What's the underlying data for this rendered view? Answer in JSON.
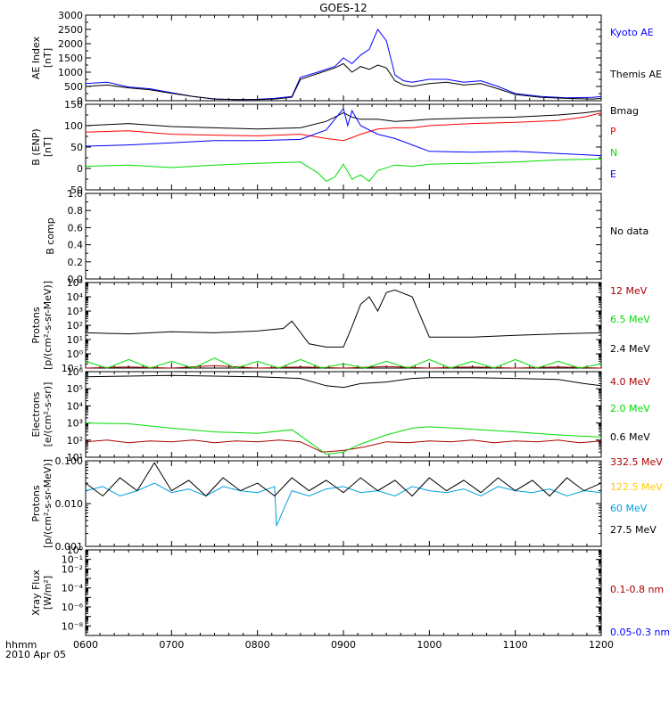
{
  "title": "GOES-12",
  "footer": {
    "time_label": "hhmm",
    "date_label": "2010 Apr 05"
  },
  "x_ticks": [
    "0600",
    "0700",
    "0800",
    "0900",
    "1000",
    "1100",
    "1200"
  ],
  "chart_data": [
    {
      "type": "line",
      "id": "ae",
      "ylabel": [
        "AE Index",
        "[nT]"
      ],
      "ylim": [
        0,
        3000
      ],
      "yscale": "linear",
      "yticks": [
        0,
        500,
        1000,
        1500,
        2000,
        2500,
        3000
      ],
      "yticklabels": [
        "0",
        "500",
        "1000",
        "1500",
        "2000",
        "2500",
        "3000"
      ],
      "x_units": "hours",
      "xlim": [
        6,
        12
      ],
      "series": [
        {
          "name": "Kyoto AE",
          "color": "#0000ff",
          "x": [
            6.0,
            6.25,
            6.5,
            6.75,
            7.0,
            7.25,
            7.5,
            7.75,
            8.0,
            8.2,
            8.4,
            8.5,
            8.7,
            8.9,
            9.0,
            9.1,
            9.2,
            9.3,
            9.4,
            9.5,
            9.6,
            9.7,
            9.8,
            10.0,
            10.2,
            10.4,
            10.6,
            10.8,
            11.0,
            11.3,
            11.6,
            11.9,
            12.0
          ],
          "y": [
            600,
            650,
            480,
            420,
            280,
            150,
            60,
            40,
            50,
            80,
            150,
            820,
            1000,
            1200,
            1500,
            1300,
            1600,
            1800,
            2500,
            2100,
            900,
            700,
            650,
            750,
            750,
            650,
            700,
            500,
            250,
            150,
            100,
            120,
            150
          ]
        },
        {
          "name": "Themis AE",
          "color": "#000000",
          "x": [
            6.0,
            6.25,
            6.5,
            6.75,
            7.0,
            7.25,
            7.5,
            7.75,
            8.0,
            8.2,
            8.4,
            8.5,
            8.7,
            8.9,
            9.0,
            9.1,
            9.2,
            9.3,
            9.4,
            9.5,
            9.6,
            9.7,
            9.8,
            10.0,
            10.2,
            10.4,
            10.6,
            10.8,
            11.0,
            11.3,
            11.6,
            11.9,
            12.0
          ],
          "y": [
            500,
            550,
            450,
            380,
            260,
            150,
            60,
            40,
            40,
            60,
            120,
            750,
            950,
            1150,
            1300,
            1000,
            1200,
            1100,
            1250,
            1150,
            700,
            550,
            500,
            600,
            650,
            550,
            600,
            420,
            220,
            120,
            80,
            60,
            80
          ]
        }
      ]
    },
    {
      "type": "line",
      "id": "bfield",
      "ylabel": [
        "B (ENP)",
        "[nT]"
      ],
      "ylim": [
        -50,
        150
      ],
      "yscale": "linear",
      "yticks": [
        -50,
        0,
        50,
        100,
        150
      ],
      "yticklabels": [
        "-50",
        "0",
        "50",
        "100",
        "150"
      ],
      "x_units": "hours",
      "xlim": [
        6,
        12
      ],
      "series": [
        {
          "name": "Bmag",
          "color": "#000000",
          "x": [
            6.0,
            6.5,
            7.0,
            7.5,
            8.0,
            8.5,
            8.8,
            9.0,
            9.1,
            9.2,
            9.4,
            9.6,
            9.8,
            10.0,
            10.5,
            11.0,
            11.5,
            11.8,
            12.0
          ],
          "y": [
            100,
            105,
            98,
            95,
            92,
            95,
            110,
            130,
            120,
            115,
            115,
            110,
            112,
            115,
            118,
            120,
            125,
            130,
            135
          ]
        },
        {
          "name": "P",
          "color": "#ff0000",
          "x": [
            6.0,
            6.5,
            7.0,
            7.5,
            8.0,
            8.5,
            8.8,
            9.0,
            9.1,
            9.2,
            9.4,
            9.6,
            9.8,
            10.0,
            10.5,
            11.0,
            11.5,
            11.8,
            12.0
          ],
          "y": [
            85,
            88,
            80,
            78,
            76,
            80,
            70,
            65,
            72,
            80,
            92,
            95,
            95,
            100,
            105,
            108,
            112,
            120,
            130
          ]
        },
        {
          "name": "N",
          "color": "#00dd00",
          "x": [
            6.0,
            6.5,
            7.0,
            7.5,
            8.0,
            8.5,
            8.7,
            8.8,
            8.9,
            9.0,
            9.1,
            9.2,
            9.3,
            9.4,
            9.6,
            9.8,
            10.0,
            10.5,
            11.0,
            11.5,
            12.0
          ],
          "y": [
            5,
            8,
            2,
            8,
            12,
            15,
            -10,
            -30,
            -20,
            10,
            -25,
            -15,
            -30,
            -5,
            8,
            5,
            10,
            12,
            15,
            20,
            22
          ]
        },
        {
          "name": "E",
          "color": "#0000ff",
          "x": [
            6.0,
            6.5,
            7.0,
            7.5,
            8.0,
            8.5,
            8.8,
            9.0,
            9.05,
            9.1,
            9.2,
            9.4,
            9.6,
            9.8,
            10.0,
            10.5,
            11.0,
            11.5,
            12.0
          ],
          "y": [
            52,
            55,
            60,
            65,
            65,
            68,
            90,
            140,
            100,
            135,
            100,
            80,
            70,
            55,
            40,
            38,
            40,
            35,
            30
          ]
        }
      ]
    },
    {
      "type": "line",
      "id": "bcomp",
      "ylabel": [
        "B comp"
      ],
      "ylim": [
        0,
        1
      ],
      "yscale": "linear",
      "yticks": [
        0,
        0.2,
        0.4,
        0.6,
        0.8,
        1.0
      ],
      "yticklabels": [
        "0.0",
        "0.2",
        "0.4",
        "0.6",
        "0.8",
        "1.0"
      ],
      "x_units": "hours",
      "xlim": [
        6,
        12
      ],
      "no_data_label": "No data",
      "series": []
    },
    {
      "type": "line",
      "id": "protons1",
      "ylabel": [
        "Protons",
        "[p/(cm²-s-sr-MeV)]"
      ],
      "ylim": [
        0.1,
        100000
      ],
      "yscale": "log",
      "yticks": [
        0.1,
        1,
        10,
        100,
        1000,
        10000,
        100000
      ],
      "yticklabels": [
        "10⁻¹",
        "10⁰",
        "10¹",
        "10²",
        "10³",
        "10⁴",
        "10⁵"
      ],
      "x_units": "hours",
      "xlim": [
        6,
        12
      ],
      "series": [
        {
          "name": "12 MeV",
          "color": "#aa0000",
          "x": [
            6.0,
            6.5,
            7.0,
            7.5,
            8.0,
            8.5,
            9.0,
            9.5,
            10.0,
            10.5,
            11.0,
            11.5,
            12.0
          ],
          "y": [
            0.1,
            0.12,
            0.1,
            0.15,
            0.1,
            0.12,
            0.1,
            0.13,
            0.1,
            0.12,
            0.1,
            0.12,
            0.1
          ]
        },
        {
          "name": "6.5 MeV",
          "color": "#00dd00",
          "x": [
            6.0,
            6.25,
            6.5,
            6.75,
            7.0,
            7.25,
            7.5,
            7.75,
            8.0,
            8.25,
            8.5,
            8.75,
            9.0,
            9.25,
            9.5,
            9.75,
            10.0,
            10.25,
            10.5,
            10.75,
            11.0,
            11.25,
            11.5,
            11.75,
            12.0
          ],
          "y": [
            0.3,
            0.1,
            0.4,
            0.1,
            0.3,
            0.1,
            0.5,
            0.1,
            0.3,
            0.1,
            0.4,
            0.1,
            0.2,
            0.1,
            0.3,
            0.1,
            0.4,
            0.1,
            0.3,
            0.1,
            0.4,
            0.1,
            0.3,
            0.1,
            0.2
          ]
        },
        {
          "name": "2.4 MeV",
          "color": "#000000",
          "x": [
            6.0,
            6.5,
            7.0,
            7.5,
            8.0,
            8.3,
            8.4,
            8.6,
            8.8,
            9.0,
            9.1,
            9.2,
            9.3,
            9.4,
            9.5,
            9.6,
            9.8,
            10.0,
            10.5,
            11.0,
            11.5,
            12.0
          ],
          "y": [
            30,
            25,
            35,
            30,
            40,
            60,
            200,
            5,
            3,
            3,
            80,
            3000,
            10000,
            1000,
            20000,
            30000,
            10000,
            15,
            15,
            20,
            25,
            30
          ]
        }
      ]
    },
    {
      "type": "line",
      "id": "electrons",
      "ylabel": [
        "Electrons",
        "[e/(cm²-s-sr)]"
      ],
      "ylim": [
        10,
        1000000
      ],
      "yscale": "log",
      "yticks": [
        10,
        100,
        1000,
        10000,
        100000,
        1000000
      ],
      "yticklabels": [
        "10¹",
        "10²",
        "10³",
        "10⁴",
        "10⁵",
        "10⁶"
      ],
      "x_units": "hours",
      "xlim": [
        6,
        12
      ],
      "series": [
        {
          "name": "4.0 MeV",
          "color": "#aa0000",
          "x": [
            6.0,
            6.25,
            6.5,
            6.75,
            7.0,
            7.25,
            7.5,
            7.75,
            8.0,
            8.25,
            8.5,
            8.75,
            9.0,
            9.25,
            9.5,
            9.75,
            10.0,
            10.25,
            10.5,
            10.75,
            11.0,
            11.25,
            11.5,
            11.75,
            12.0
          ],
          "y": [
            80,
            100,
            70,
            90,
            80,
            100,
            70,
            90,
            80,
            100,
            80,
            20,
            25,
            40,
            80,
            70,
            90,
            80,
            100,
            70,
            90,
            80,
            100,
            70,
            90
          ]
        },
        {
          "name": "2.0 MeV",
          "color": "#00dd00",
          "x": [
            6.0,
            6.5,
            7.0,
            7.5,
            8.0,
            8.4,
            8.6,
            8.8,
            9.0,
            9.2,
            9.5,
            9.8,
            10.0,
            10.3,
            10.6,
            11.0,
            11.5,
            12.0
          ],
          "y": [
            1000,
            900,
            500,
            300,
            250,
            400,
            80,
            15,
            20,
            60,
            200,
            500,
            600,
            500,
            400,
            300,
            200,
            150
          ]
        },
        {
          "name": "0.6 MeV",
          "color": "#000000",
          "x": [
            6.0,
            6.5,
            7.0,
            7.5,
            8.0,
            8.5,
            8.8,
            9.0,
            9.2,
            9.5,
            9.8,
            10.0,
            10.5,
            11.0,
            11.5,
            11.8,
            12.0
          ],
          "y": [
            500000,
            550000,
            600000,
            550000,
            500000,
            400000,
            150000,
            120000,
            200000,
            250000,
            400000,
            450000,
            450000,
            400000,
            350000,
            200000,
            150000
          ]
        }
      ]
    },
    {
      "type": "line",
      "id": "protons2",
      "ylabel": [
        "Protons",
        "[p/(cm²-s-sr-MeV)]"
      ],
      "ylim": [
        0.001,
        0.1
      ],
      "yscale": "log",
      "yticks": [
        0.001,
        0.01,
        0.1
      ],
      "yticklabels": [
        "0.001",
        "0.010",
        "0.100"
      ],
      "x_units": "hours",
      "xlim": [
        6,
        12
      ],
      "series": [
        {
          "name": "332.5 MeV",
          "color": "#aa0000",
          "x": [],
          "y": []
        },
        {
          "name": "122.5 MeV",
          "color": "#ffcc00",
          "x": [],
          "y": []
        },
        {
          "name": "60 MeV",
          "color": "#00a0dd",
          "x": [
            6.0,
            6.2,
            6.4,
            6.6,
            6.8,
            7.0,
            7.2,
            7.4,
            7.6,
            7.8,
            8.0,
            8.2,
            8.22,
            8.4,
            8.6,
            8.8,
            9.0,
            9.2,
            9.4,
            9.6,
            9.8,
            10.0,
            10.2,
            10.4,
            10.6,
            10.8,
            11.0,
            11.2,
            11.4,
            11.6,
            11.8,
            12.0
          ],
          "y": [
            0.02,
            0.025,
            0.015,
            0.02,
            0.03,
            0.018,
            0.022,
            0.015,
            0.025,
            0.02,
            0.018,
            0.025,
            0.003,
            0.02,
            0.015,
            0.022,
            0.025,
            0.018,
            0.02,
            0.015,
            0.025,
            0.02,
            0.018,
            0.022,
            0.015,
            0.025,
            0.02,
            0.018,
            0.022,
            0.015,
            0.02,
            0.018
          ]
        },
        {
          "name": "27.5 MeV",
          "color": "#000000",
          "x": [
            6.0,
            6.2,
            6.4,
            6.6,
            6.8,
            7.0,
            7.2,
            7.4,
            7.6,
            7.8,
            8.0,
            8.2,
            8.4,
            8.6,
            8.8,
            9.0,
            9.2,
            9.4,
            9.6,
            9.8,
            10.0,
            10.2,
            10.4,
            10.6,
            10.8,
            11.0,
            11.2,
            11.4,
            11.6,
            11.8,
            12.0
          ],
          "y": [
            0.03,
            0.015,
            0.04,
            0.02,
            0.09,
            0.02,
            0.035,
            0.015,
            0.04,
            0.02,
            0.03,
            0.015,
            0.04,
            0.02,
            0.035,
            0.018,
            0.04,
            0.02,
            0.035,
            0.015,
            0.04,
            0.02,
            0.035,
            0.018,
            0.04,
            0.02,
            0.035,
            0.015,
            0.04,
            0.02,
            0.03
          ]
        }
      ]
    },
    {
      "type": "line",
      "id": "xray",
      "ylabel": [
        "Xray Flux",
        "[W/m²]"
      ],
      "ylim": [
        1e-09,
        1
      ],
      "yscale": "log",
      "yticks": [
        1e-09,
        1e-08,
        1e-07,
        1e-06,
        1e-05,
        0.0001,
        0.001,
        0.01,
        0.1,
        1
      ],
      "yticklabels": [
        "",
        "10⁻⁸",
        "",
        "10⁻⁶",
        "",
        "10⁻⁴",
        "",
        "10⁻²",
        "10⁻¹",
        "10⁰"
      ],
      "x_units": "hours",
      "xlim": [
        6,
        12
      ],
      "series": [
        {
          "name": "0.1-0.8 nm",
          "color": "#aa0000",
          "x": [],
          "y": []
        },
        {
          "name": "0.05-0.3 nm",
          "color": "#0000ff",
          "x": [],
          "y": []
        }
      ]
    }
  ]
}
